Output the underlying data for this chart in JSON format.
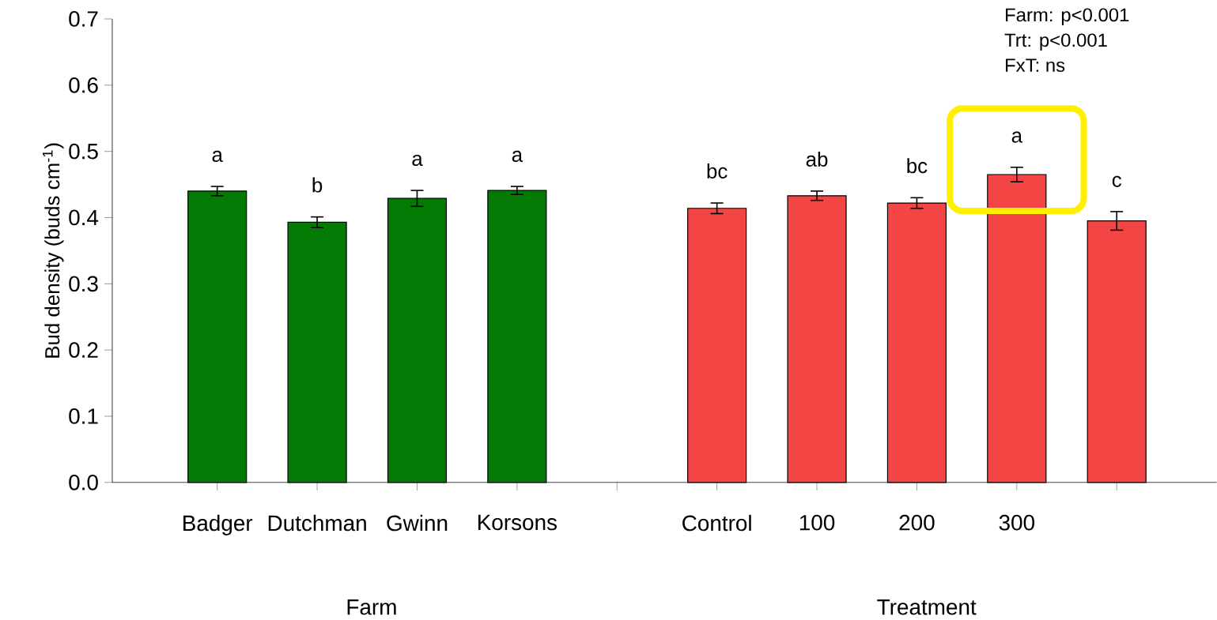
{
  "chart_data": {
    "type": "bar",
    "ylabel": "Bud density (buds cm$^{-1}$)",
    "categories": [
      "Badger",
      "Dutchman",
      "Gwinn",
      "Korsons",
      null,
      "Control",
      "100",
      "200",
      "300",
      null
    ],
    "series": [
      {
        "color": "#037a03",
        "values": [
          0.44,
          0.393,
          0.429,
          0.441,
          null,
          null,
          null,
          null,
          null,
          null
        ],
        "errors": [
          0.007,
          0.008,
          0.012,
          0.006,
          null,
          null,
          null,
          null,
          null,
          null
        ],
        "value_labels": [
          "a",
          "b",
          "a",
          "a",
          null,
          null,
          null,
          null,
          null,
          null
        ]
      },
      {
        "color": "#f44545",
        "values": [
          null,
          null,
          null,
          null,
          null,
          0.414,
          0.433,
          0.422,
          0.465,
          0.395
        ],
        "errors": [
          null,
          null,
          null,
          null,
          null,
          0.008,
          0.007,
          0.008,
          0.011,
          0.014
        ],
        "value_labels": [
          null,
          null,
          null,
          null,
          null,
          "bc",
          "ab",
          "bc",
          "a",
          "c"
        ]
      }
    ],
    "ylim": [
      0,
      0.7
    ],
    "yticks": [
      {
        "value": 0,
        "label": "0.0"
      },
      0.1,
      0.2,
      0.3,
      0.4,
      0.5,
      0.6,
      0.7
    ],
    "annotations": [
      "Farm: p<0.001",
      "Trt: p<0.001",
      "FxT: ns",
      "Farm",
      "Treatment"
    ]
  }
}
